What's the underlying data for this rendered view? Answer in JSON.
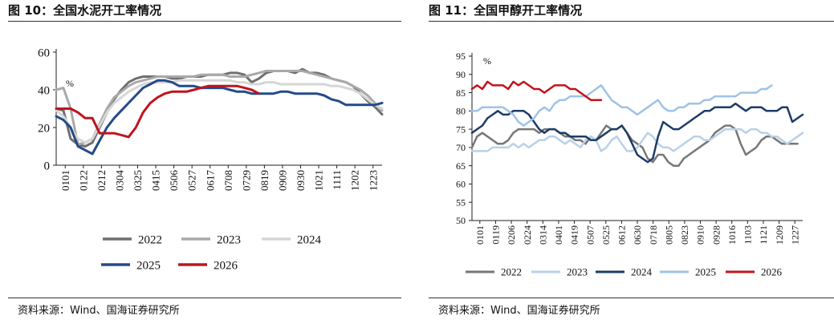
{
  "charts": [
    {
      "figure_title": "图 10：全国水泥开工率情况",
      "unit_label": "%",
      "source": "资料来源：Wind、国海证券研究所",
      "chart_data": {
        "type": "line",
        "title": "全国水泥开工率情况",
        "ylabel": "%",
        "ylim": [
          0,
          60
        ],
        "yticks": [
          "0",
          "20",
          "40",
          "60"
        ],
        "xticks": [
          "0101",
          "0122",
          "0212",
          "0304",
          "0325",
          "0415",
          "0506",
          "0527",
          "0617",
          "0708",
          "0729",
          "0819",
          "0909",
          "0930",
          "1021",
          "1111",
          "1202",
          "1223"
        ],
        "legend_position": "bottom",
        "grid": false,
        "series": [
          {
            "name": "2022",
            "color": "#6f6f6f",
            "values": [
              30,
              29,
              14,
              11,
              10,
              12,
              20,
              28,
              35,
              40,
              44,
              46,
              47,
              47,
              47,
              47,
              46,
              46,
              47,
              47,
              47,
              48,
              48,
              48,
              49,
              49,
              48,
              44,
              46,
              49,
              50,
              50,
              50,
              49,
              51,
              49,
              49,
              48,
              46,
              45,
              44,
              42,
              38,
              34,
              31,
              27
            ]
          },
          {
            "name": "2023",
            "color": "#a9a9a9",
            "values": [
              40,
              41,
              30,
              11,
              12,
              14,
              22,
              30,
              36,
              39,
              42,
              44,
              45,
              46,
              47,
              47,
              47,
              47,
              47,
              47,
              48,
              48,
              48,
              48,
              47,
              47,
              47,
              48,
              49,
              50,
              50,
              50,
              50,
              50,
              50,
              49,
              48,
              47,
              46,
              45,
              44,
              42,
              40,
              37,
              33,
              29
            ]
          },
          {
            "name": "2024",
            "color": "#d6d6d6",
            "values": [
              29,
              26,
              20,
              14,
              12,
              14,
              21,
              28,
              33,
              36,
              39,
              41,
              43,
              44,
              44,
              44,
              44,
              45,
              45,
              45,
              45,
              45,
              45,
              45,
              45,
              44,
              44,
              43,
              43,
              44,
              44,
              43,
              43,
              43,
              43,
              43,
              43,
              43,
              42,
              42,
              41,
              40,
              38,
              35,
              32,
              30
            ]
          },
          {
            "name": "2025",
            "color": "#244a8a",
            "values": [
              26,
              24,
              20,
              10,
              8,
              6,
              13,
              20,
              25,
              29,
              33,
              37,
              41,
              43,
              45,
              45,
              44,
              42,
              42,
              42,
              41,
              41,
              41,
              41,
              40,
              39,
              39,
              38,
              38,
              38,
              38,
              39,
              39,
              38,
              38,
              38,
              38,
              37,
              35,
              34,
              32,
              32,
              32,
              32,
              32,
              33
            ]
          },
          {
            "name": "2026",
            "color": "#c0141c",
            "values": [
              30,
              30,
              30,
              28,
              25,
              25,
              17,
              17,
              17,
              16,
              15,
              20,
              28,
              33,
              36,
              38,
              39,
              39,
              39,
              40,
              41,
              42,
              42,
              42,
              42,
              42,
              41,
              40,
              38
            ]
          }
        ]
      }
    },
    {
      "figure_title": "图 11：全国甲醇开工率情况",
      "unit_label": "%",
      "source": "资料来源：Wind、国海证券研究所",
      "chart_data": {
        "type": "line",
        "title": "全国甲醇开工率情况",
        "ylabel": "%",
        "ylim": [
          50,
          95
        ],
        "yticks": [
          "50",
          "55",
          "60",
          "65",
          "70",
          "75",
          "80",
          "85",
          "90",
          "95"
        ],
        "xticks": [
          "0101",
          "0119",
          "0206",
          "0224",
          "0314",
          "0401",
          "0419",
          "0507",
          "0525",
          "0612",
          "0630",
          "0718",
          "0805",
          "0823",
          "0910",
          "0928",
          "1016",
          "1103",
          "1121",
          "1209",
          "1227"
        ],
        "legend_position": "bottom",
        "grid": false,
        "series": [
          {
            "name": "2022",
            "color": "#777777",
            "values": [
              70,
              73,
              74,
              73,
              72,
              71,
              71,
              72,
              74,
              75,
              75,
              75,
              75,
              74,
              75,
              75,
              75,
              74,
              73,
              73,
              72,
              72,
              71,
              73,
              72,
              74,
              76,
              75,
              75,
              76,
              74,
              72,
              71,
              70,
              67,
              66,
              68,
              68,
              66,
              65,
              65,
              67,
              68,
              69,
              70,
              71,
              72,
              74,
              75,
              76,
              76,
              75,
              71,
              68,
              69,
              70,
              72,
              73,
              73,
              72,
              71,
              71,
              71,
              71
            ]
          },
          {
            "name": "2023",
            "color": "#b9d1e8",
            "values": [
              69,
              69,
              69,
              69,
              70,
              70,
              70,
              70,
              71,
              70,
              71,
              70,
              71,
              72,
              72,
              73,
              73,
              72,
              71,
              72,
              71,
              70,
              72,
              73,
              72,
              69,
              70,
              72,
              73,
              71,
              69,
              69,
              70,
              72,
              74,
              73,
              71,
              70,
              70,
              69,
              70,
              71,
              72,
              73,
              73,
              72,
              72,
              73,
              74,
              75,
              75,
              75,
              75,
              74,
              75,
              75,
              74,
              74,
              73,
              73,
              72,
              71,
              72,
              73,
              74
            ]
          },
          {
            "name": "2024",
            "color": "#1d3c66",
            "values": [
              74,
              75,
              76,
              78,
              79,
              80,
              79,
              79,
              80,
              80,
              80,
              79,
              77,
              75,
              74,
              75,
              75,
              74,
              74,
              73,
              73,
              73,
              73,
              72,
              72,
              73,
              74,
              75,
              75,
              76,
              74,
              71,
              68,
              67,
              66,
              67,
              73,
              77,
              76,
              75,
              75,
              76,
              77,
              78,
              79,
              80,
              80,
              81,
              81,
              81,
              81,
              82,
              81,
              80,
              81,
              81,
              81,
              80,
              80,
              80,
              81,
              81,
              77,
              78,
              79
            ]
          },
          {
            "name": "2025",
            "color": "#9ec3e6",
            "values": [
              80,
              80,
              81,
              81,
              81,
              81,
              81,
              80,
              79,
              77,
              76,
              77,
              78,
              80,
              81,
              80,
              82,
              83,
              83,
              84,
              84,
              84,
              84,
              85,
              86,
              87,
              85,
              83,
              82,
              81,
              81,
              80,
              79,
              80,
              81,
              82,
              83,
              81,
              80,
              80,
              81,
              81,
              82,
              82,
              82,
              83,
              83,
              84,
              84,
              84,
              84,
              84,
              85,
              85,
              85,
              85,
              86,
              86,
              87
            ]
          },
          {
            "name": "2026",
            "color": "#c0141c",
            "values": [
              86,
              87,
              86,
              88,
              87,
              87,
              87,
              86,
              88,
              87,
              88,
              87,
              86,
              86,
              85,
              86,
              87,
              87,
              87,
              86,
              86,
              85,
              84,
              83,
              83,
              83
            ]
          }
        ]
      }
    }
  ]
}
